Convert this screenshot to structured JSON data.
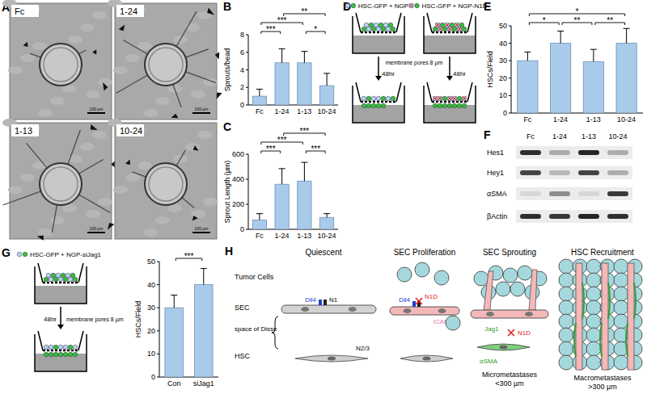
{
  "panel_labels": [
    "A",
    "B",
    "C",
    "D",
    "E",
    "F",
    "G",
    "H"
  ],
  "panel_a": {
    "images": [
      "Fc",
      "1-24",
      "1-13",
      "10-24"
    ],
    "scale_bar": "100 µm"
  },
  "chart_data": [
    {
      "type": "bar",
      "ylabel": "Sprouts/bead",
      "categories": [
        "Fc",
        "1-24",
        "1-13",
        "10-24"
      ],
      "values": [
        1.0,
        4.8,
        4.8,
        2.2
      ],
      "errors": [
        0.8,
        1.6,
        1.3,
        1.4
      ],
      "color": "#a9cbeb",
      "ylim": [
        0,
        8
      ],
      "yticks": [
        0,
        2,
        4,
        6,
        8
      ],
      "significance": [
        {
          "groups": [
            "Fc",
            "1-24"
          ],
          "label": "***"
        },
        {
          "groups": [
            "1-13",
            "10-24"
          ],
          "label": "*"
        },
        {
          "groups": [
            "Fc",
            "1-13"
          ],
          "label": "***"
        },
        {
          "groups": [
            "1-24",
            "10-24"
          ],
          "label": "**"
        }
      ]
    },
    {
      "type": "bar",
      "ylabel": "Sprout Length (µm)",
      "categories": [
        "Fc",
        "1-24",
        "1-13",
        "10-24"
      ],
      "values": [
        75,
        360,
        385,
        95
      ],
      "errors": [
        50,
        125,
        150,
        30
      ],
      "color": "#a9cbeb",
      "ylim": [
        0,
        600
      ],
      "yticks": [
        0,
        200,
        400,
        600
      ],
      "significance": [
        {
          "groups": [
            "Fc",
            "1-24"
          ],
          "label": "***"
        },
        {
          "groups": [
            "1-13",
            "10-24"
          ],
          "label": "***"
        },
        {
          "groups": [
            "Fc",
            "1-13"
          ],
          "label": "***"
        },
        {
          "groups": [
            "1-24",
            "10-24"
          ],
          "label": "***"
        }
      ]
    },
    {
      "type": "bar",
      "ylabel": "HSCs/Field",
      "categories": [
        "Fc",
        "1-24",
        "1-13",
        "10-24"
      ],
      "values": [
        30,
        40,
        29.5,
        40
      ],
      "errors": [
        5,
        7,
        7,
        8.5
      ],
      "color": "#a9cbeb",
      "ylim": [
        0,
        50
      ],
      "yticks": [
        0,
        10,
        20,
        30,
        40,
        50
      ],
      "significance": [
        {
          "groups": [
            "Fc",
            "1-24"
          ],
          "label": "*"
        },
        {
          "groups": [
            "1-24",
            "1-13"
          ],
          "label": "**"
        },
        {
          "groups": [
            "1-13",
            "10-24"
          ],
          "label": "**"
        },
        {
          "groups": [
            "Fc",
            "10-24"
          ],
          "label": "*"
        }
      ]
    },
    {
      "type": "bar",
      "ylabel": "HSCs/Field",
      "categories": [
        "Con",
        "siJag1"
      ],
      "values": [
        30,
        40
      ],
      "errors": [
        5.5,
        7
      ],
      "color": "#a9cbeb",
      "ylim": [
        0,
        50
      ],
      "yticks": [
        0,
        10,
        20,
        30,
        40,
        50
      ],
      "significance": [
        {
          "groups": [
            "Con",
            "siJag1"
          ],
          "label": "***"
        }
      ]
    }
  ],
  "panel_d": {
    "conditions": [
      "HSC-GFP + NGP",
      "HSC-GFP + NGP-N1D"
    ],
    "membrane": "membrane pores 8 µm",
    "time": "48hr"
  },
  "panel_f": {
    "columns": [
      "Fc",
      "1-24",
      "1-13",
      "10-24"
    ],
    "rows": [
      {
        "label": "Hes1",
        "intensity": [
          0.9,
          0.3,
          0.95,
          0.3
        ]
      },
      {
        "label": "Hey1",
        "intensity": [
          0.8,
          0.25,
          0.8,
          0.3
        ]
      },
      {
        "label": "αSMA",
        "intensity": [
          0.1,
          0.45,
          0.1,
          0.85
        ]
      },
      {
        "label": "βActin",
        "intensity": [
          0.9,
          0.85,
          0.95,
          0.9
        ]
      }
    ]
  },
  "panel_g": {
    "condition": "HSC-GFP + NGP-siJag1",
    "membrane": "membrane pores 8 µm",
    "time": "48hr"
  },
  "panel_h": {
    "stages": [
      "Quiescent",
      "SEC Proliferation",
      "SEC Sprouting",
      "HSC Recruitment"
    ],
    "layers": [
      "Tumor Cells",
      "SEC",
      "space of Disse",
      "HSC"
    ],
    "labels": {
      "dll4": "Dll4",
      "n1": "N1",
      "n23": "N2/3",
      "n1d": "N1D",
      "icam1": "ICAM1",
      "jag1": "Jag1",
      "asma": "αSMA"
    },
    "sizes": [
      {
        "name": "Micrometastases",
        "threshold": "<300 µm"
      },
      {
        "name": "Macrometastases",
        "threshold": ">300 µm"
      }
    ]
  }
}
